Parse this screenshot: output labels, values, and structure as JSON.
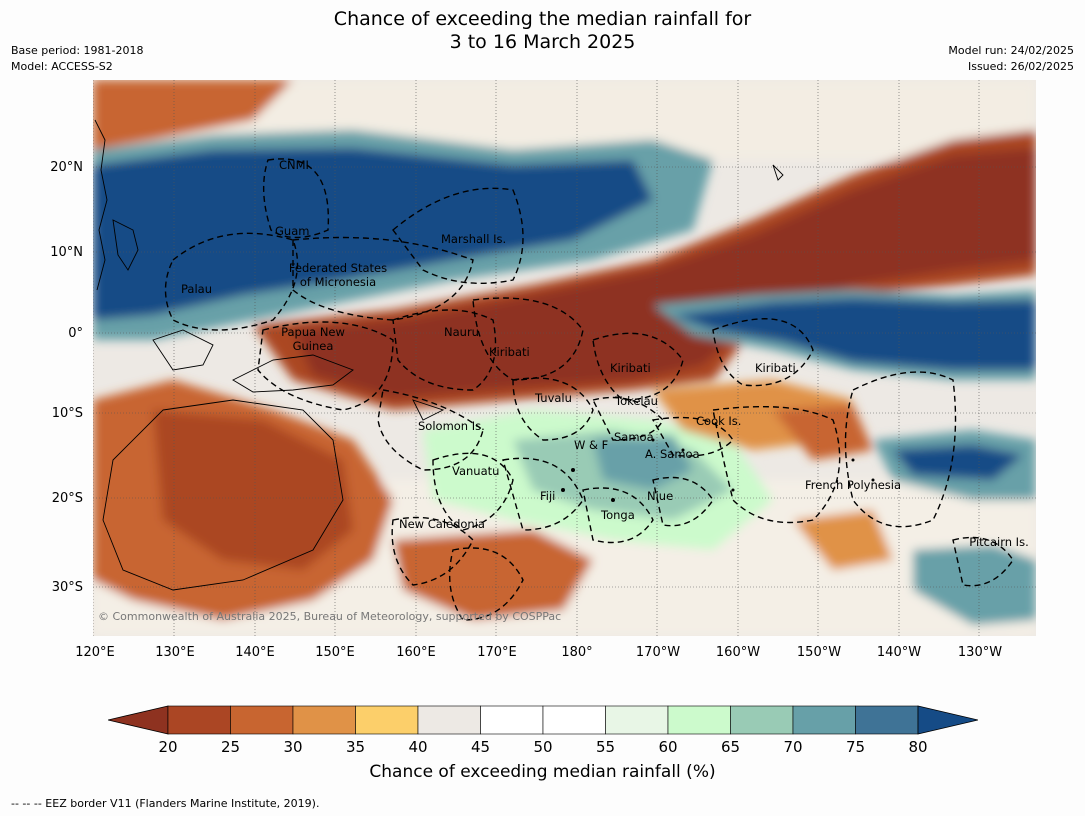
{
  "header": {
    "title_line1": "Chance of exceeding the median rainfall for",
    "title_line2": "3 to 16 March 2025",
    "base_period": "Base period: 1981-2018",
    "model": "Model: ACCESS-S2",
    "model_run": "Model run: 24/02/2025",
    "issued": "Issued: 26/02/2025"
  },
  "map": {
    "lat_labels": [
      "20°N",
      "10°N",
      "0°",
      "10°S",
      "20°S",
      "30°S"
    ],
    "lon_labels": [
      "120°E",
      "130°E",
      "140°E",
      "150°E",
      "160°E",
      "170°E",
      "180°",
      "170°W",
      "160°W",
      "150°W",
      "140°W",
      "130°W"
    ],
    "regions": {
      "cnmi": "CNMI",
      "guam": "Guam",
      "marshall": "Marshall Is.",
      "fsm": "Federated States of Micronesia",
      "palau": "Palau",
      "png": "Papua New Guinea",
      "nauru": "Nauru",
      "kiribati1": "Kiribati",
      "kiribati2": "Kiribati",
      "kiribati3": "Kiribati",
      "tuvalu": "Tuvalu",
      "tokelau": "Tokelau",
      "solomon": "Solomon Is.",
      "cook": "Cook Is.",
      "wf": "W & F",
      "samoa": "Samoa",
      "asamoa": "A. Samoa",
      "vanuatu": "Vanuatu",
      "fiji": "Fiji",
      "niue": "Niue",
      "tonga": "Tonga",
      "newcal": "New Caledonia",
      "frpoly": "French Polynesia",
      "pitcairn": "Pitcairn Is."
    },
    "copyright": "© Commonwealth of Australia 2025, Bureau of Meteorology, supported by COSPPac"
  },
  "colorbar": {
    "label": "Chance of exceeding median rainfall (%)",
    "ticks": [
      "20",
      "25",
      "30",
      "35",
      "40",
      "45",
      "50",
      "55",
      "60",
      "65",
      "70",
      "75",
      "80"
    ],
    "colors": [
      "#8e3220",
      "#ab4624",
      "#c86530",
      "#e09247",
      "#fccf6a",
      "#ede9e4",
      "#ffffff",
      "#ffffff",
      "#e8f6e6",
      "#ccfacc",
      "#99cbb5",
      "#67a0a8",
      "#3f7396",
      "#154b86"
    ]
  },
  "footer": "-- -- -- EEZ border V11 (Flanders Marine Institute, 2019)."
}
